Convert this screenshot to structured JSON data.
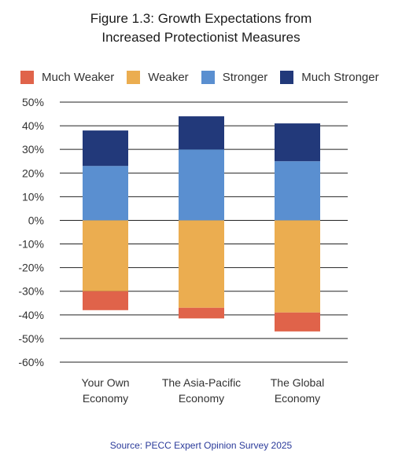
{
  "title_line1": "Figure 1.3: Growth Expectations from",
  "title_line2": "Increased Protectionist Measures",
  "source": "Source: PECC Expert Opinion Survey 2025",
  "colors": {
    "much_weaker": "#e0634a",
    "weaker": "#ebad50",
    "stronger": "#5a8fd0",
    "much_stronger": "#22397a"
  },
  "legend": [
    {
      "label": "Much Weaker",
      "color": "#e0634a"
    },
    {
      "label": "Weaker",
      "color": "#ebad50"
    },
    {
      "label": "Stronger",
      "color": "#5a8fd0"
    },
    {
      "label": "Much Stronger",
      "color": "#22397a"
    }
  ],
  "chart_data": {
    "type": "bar",
    "stacked": true,
    "categories": [
      [
        "Your Own",
        "Economy"
      ],
      [
        "The Asia-Pacific",
        "Economy"
      ],
      [
        "The Global",
        "Economy"
      ]
    ],
    "series": [
      {
        "name": "Much Weaker",
        "values": [
          -8,
          -4.5,
          -8
        ]
      },
      {
        "name": "Weaker",
        "values": [
          -30,
          -37,
          -39
        ]
      },
      {
        "name": "Stronger",
        "values": [
          23,
          30,
          25
        ]
      },
      {
        "name": "Much Stronger",
        "values": [
          15,
          14,
          16
        ]
      }
    ],
    "ylim": [
      -60,
      50
    ],
    "yticks": [
      50,
      40,
      30,
      20,
      10,
      0,
      -10,
      -20,
      -30,
      -40,
      -50,
      -60
    ],
    "ytick_labels": [
      "50%",
      "40%",
      "30%",
      "20%",
      "10%",
      "0%",
      "-10%",
      "-20%",
      "-30%",
      "-40%",
      "-50%",
      "-60%"
    ],
    "grid": true,
    "legend_position": "top-left"
  }
}
